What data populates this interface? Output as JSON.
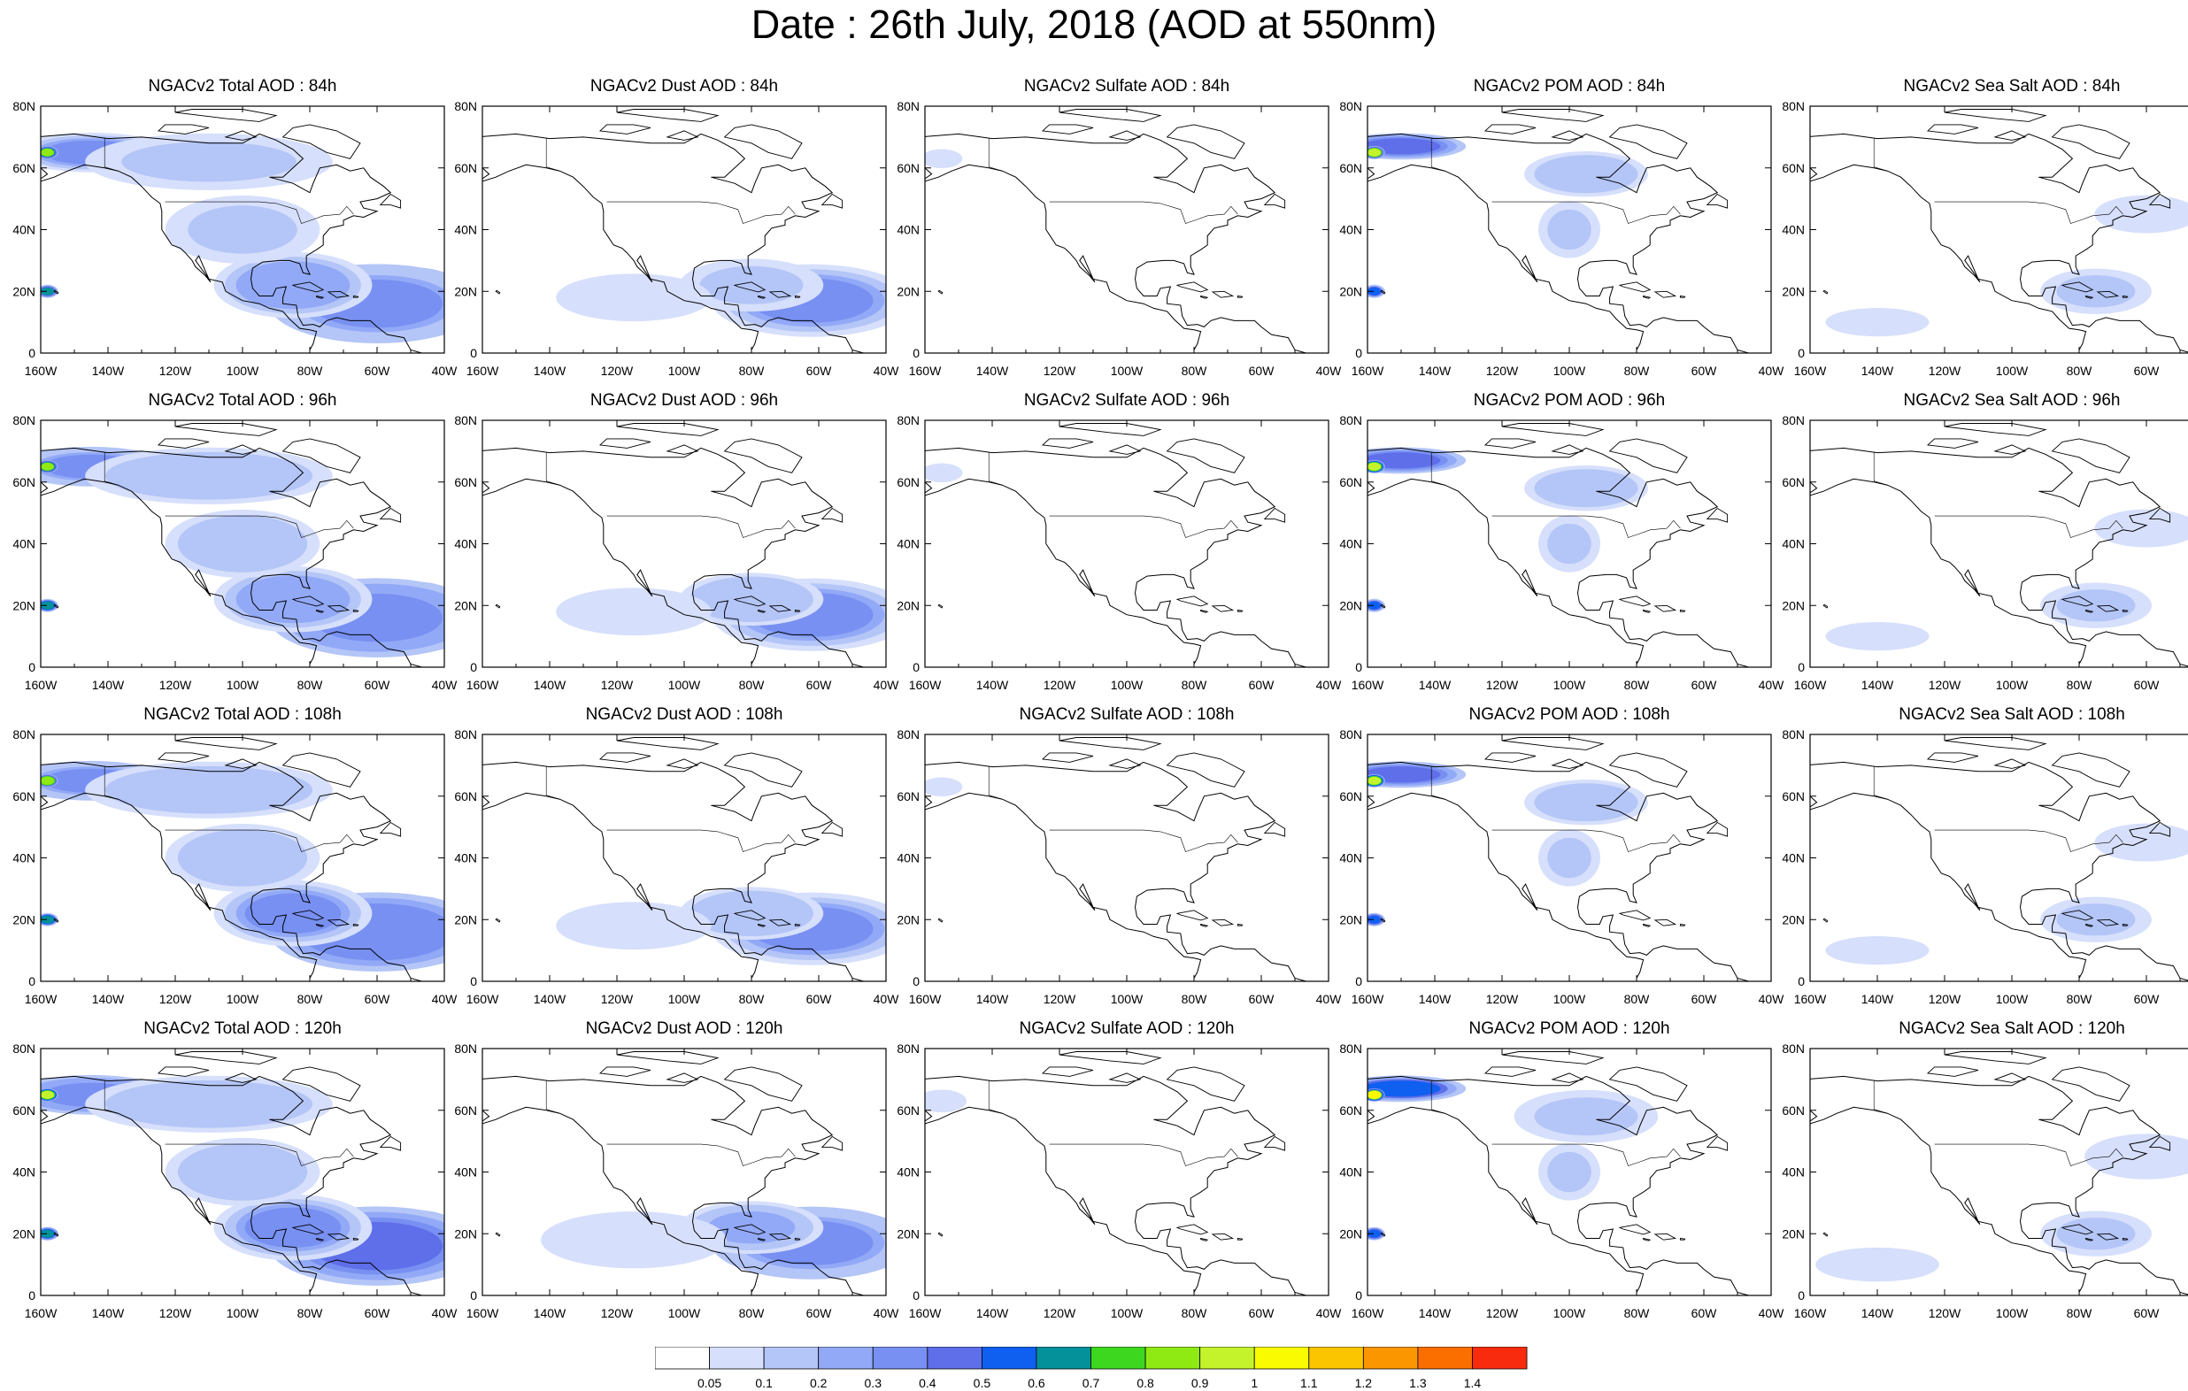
{
  "title": "Date : 26th July, 2018 (AOD at 550nm)",
  "panels": [
    {
      "title": "NGACv2 Total AOD : 84h",
      "species": "total",
      "hour": 84
    },
    {
      "title": "NGACv2 Dust AOD : 84h",
      "species": "dust",
      "hour": 84
    },
    {
      "title": "NGACv2 Sulfate AOD : 84h",
      "species": "sulfate",
      "hour": 84
    },
    {
      "title": "NGACv2 POM AOD : 84h",
      "species": "pom",
      "hour": 84
    },
    {
      "title": "NGACv2 Sea Salt AOD : 84h",
      "species": "seasalt",
      "hour": 84
    },
    {
      "title": "NGACv2 Total AOD : 96h",
      "species": "total",
      "hour": 96
    },
    {
      "title": "NGACv2 Dust AOD : 96h",
      "species": "dust",
      "hour": 96
    },
    {
      "title": "NGACv2 Sulfate AOD : 96h",
      "species": "sulfate",
      "hour": 96
    },
    {
      "title": "NGACv2 POM AOD : 96h",
      "species": "pom",
      "hour": 96
    },
    {
      "title": "NGACv2 Sea Salt AOD : 96h",
      "species": "seasalt",
      "hour": 96
    },
    {
      "title": "NGACv2 Total AOD : 108h",
      "species": "total",
      "hour": 108
    },
    {
      "title": "NGACv2 Dust AOD : 108h",
      "species": "dust",
      "hour": 108
    },
    {
      "title": "NGACv2 Sulfate AOD : 108h",
      "species": "sulfate",
      "hour": 108
    },
    {
      "title": "NGACv2 POM AOD : 108h",
      "species": "pom",
      "hour": 108
    },
    {
      "title": "NGACv2 Sea Salt AOD : 108h",
      "species": "seasalt",
      "hour": 108
    },
    {
      "title": "NGACv2 Total AOD : 120h",
      "species": "total",
      "hour": 120
    },
    {
      "title": "NGACv2 Dust AOD : 120h",
      "species": "dust",
      "hour": 120
    },
    {
      "title": "NGACv2 Sulfate AOD : 120h",
      "species": "sulfate",
      "hour": 120
    },
    {
      "title": "NGACv2 POM AOD : 120h",
      "species": "pom",
      "hour": 120
    },
    {
      "title": "NGACv2 Sea Salt  AOD : 120h",
      "species": "seasalt",
      "hour": 120
    }
  ],
  "axes": {
    "lon_ticks": [
      "160W",
      "140W",
      "120W",
      "100W",
      "80W",
      "60W",
      "40W"
    ],
    "lat_ticks": [
      "0",
      "20N",
      "40N",
      "60N",
      "80N"
    ],
    "lon_values": [
      -160,
      -140,
      -120,
      -100,
      -80,
      -60,
      -40
    ],
    "lat_values": [
      0,
      20,
      40,
      60,
      80
    ]
  },
  "colorbar": {
    "labels": [
      "0.05",
      "0.1",
      "0.2",
      "0.3",
      "0.4",
      "0.5",
      "0.6",
      "0.7",
      "0.8",
      "0.9",
      "1",
      "1.1",
      "1.2",
      "1.3",
      "1.4"
    ],
    "colors": [
      "#ffffff",
      "#d6dffb",
      "#b4c5f7",
      "#92a9f7",
      "#7890f2",
      "#5f6ee9",
      "#0f5ff0",
      "#049199",
      "#3ed720",
      "#8fe913",
      "#c4f32c",
      "#fbfb00",
      "#fbc600",
      "#fb9600",
      "#fb6f00",
      "#f82b0f"
    ]
  },
  "plumes": {
    "total": [
      {
        "lon": -48,
        "lat": 18,
        "rlon": 14,
        "rlat": 9,
        "v": 0.55
      },
      {
        "lon": -60,
        "lat": 16,
        "rlon": 30,
        "rlat": 12,
        "v": 0.35
      },
      {
        "lon": -85,
        "lat": 22,
        "rlon": 22,
        "rlat": 10,
        "v": 0.28
      },
      {
        "lon": -145,
        "lat": 65,
        "rlon": 22,
        "rlat": 6,
        "v": 0.32
      },
      {
        "lon": -158,
        "lat": 65,
        "rlon": 3,
        "rlat": 2,
        "v": 0.8
      },
      {
        "lon": -158,
        "lat": 20,
        "rlon": 3,
        "rlat": 2,
        "v": 0.6
      },
      {
        "lon": -100,
        "lat": 40,
        "rlon": 25,
        "rlat": 12,
        "v": 0.12
      },
      {
        "lon": -110,
        "lat": 62,
        "rlon": 40,
        "rlat": 10,
        "v": 0.12
      }
    ],
    "dust": [
      {
        "lon": -50,
        "lat": 18,
        "rlon": 13,
        "rlat": 8,
        "v": 0.5
      },
      {
        "lon": -62,
        "lat": 17,
        "rlon": 28,
        "rlat": 11,
        "v": 0.3
      },
      {
        "lon": -80,
        "lat": 22,
        "rlon": 20,
        "rlat": 8,
        "v": 0.18
      },
      {
        "lon": -115,
        "lat": 18,
        "rlon": 30,
        "rlat": 10,
        "v": 0.08
      }
    ],
    "sulfate": [
      {
        "lon": -155,
        "lat": 63,
        "rlon": 8,
        "rlat": 4,
        "v": 0.08
      }
    ],
    "pom": [
      {
        "lon": -150,
        "lat": 67,
        "rlon": 18,
        "rlat": 4,
        "v": 0.45
      },
      {
        "lon": -158,
        "lat": 65,
        "rlon": 3,
        "rlat": 2,
        "v": 0.9
      },
      {
        "lon": -95,
        "lat": 58,
        "rlon": 20,
        "rlat": 8,
        "v": 0.15
      },
      {
        "lon": -100,
        "lat": 40,
        "rlon": 10,
        "rlat": 10,
        "v": 0.1
      },
      {
        "lon": -158,
        "lat": 20,
        "rlon": 3,
        "rlat": 2,
        "v": 0.5
      }
    ],
    "seasalt": [
      {
        "lon": -140,
        "lat": 10,
        "rlon": 20,
        "rlat": 6,
        "v": 0.08
      },
      {
        "lon": -75,
        "lat": 20,
        "rlon": 18,
        "rlat": 8,
        "v": 0.1
      },
      {
        "lon": -60,
        "lat": 45,
        "rlon": 20,
        "rlat": 8,
        "v": 0.08
      }
    ]
  }
}
